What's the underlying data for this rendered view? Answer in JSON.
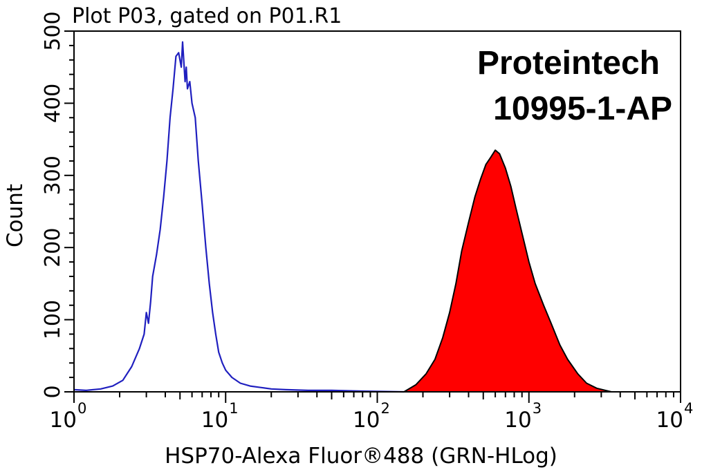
{
  "chart_data": {
    "type": "area",
    "title": "Plot P03, gated on P01.R1",
    "xlabel": "HSP70-Alexa Fluor®488 (GRN-HLog)",
    "ylabel": "Count",
    "xscale": "log",
    "xlim": [
      1,
      10000
    ],
    "ylim": [
      0,
      500
    ],
    "x_tick_labels": [
      {
        "base": "10",
        "exp": "0",
        "value": 1
      },
      {
        "base": "10",
        "exp": "1",
        "value": 10
      },
      {
        "base": "10",
        "exp": "2",
        "value": 100
      },
      {
        "base": "10",
        "exp": "3",
        "value": 1000
      },
      {
        "base": "10",
        "exp": "4",
        "value": 10000
      }
    ],
    "y_ticks": [
      0,
      100,
      200,
      300,
      400,
      500
    ],
    "annotation": [
      "Proteintech",
      "10995-1-AP"
    ],
    "series": [
      {
        "style": "outline",
        "color": "#1f1fbf",
        "x": [
          1.0,
          1.2,
          1.5,
          1.8,
          2.1,
          2.4,
          2.7,
          2.9,
          3.0,
          3.1,
          3.2,
          3.3,
          3.5,
          3.7,
          3.9,
          4.1,
          4.3,
          4.5,
          4.7,
          4.9,
          5.1,
          5.2,
          5.4,
          5.5,
          5.6,
          5.8,
          6.0,
          6.3,
          6.6,
          7.0,
          7.4,
          7.8,
          8.2,
          8.6,
          9.0,
          9.5,
          10.0,
          11.0,
          12.5,
          14.5,
          17.0,
          20.0,
          25.0,
          35.0,
          50.0,
          80.0,
          150.0
        ],
        "y": [
          3,
          2,
          4,
          8,
          16,
          35,
          60,
          80,
          110,
          95,
          125,
          160,
          190,
          225,
          270,
          320,
          380,
          420,
          465,
          470,
          450,
          485,
          430,
          450,
          420,
          430,
          400,
          380,
          320,
          260,
          200,
          150,
          110,
          80,
          55,
          40,
          30,
          20,
          12,
          8,
          6,
          4,
          3,
          2,
          2,
          1,
          0
        ]
      },
      {
        "style": "filled",
        "color": "#ff0000",
        "edge_color": "#000000",
        "x": [
          150,
          180,
          210,
          240,
          270,
          300,
          330,
          360,
          400,
          440,
          480,
          520,
          560,
          600,
          640,
          700,
          760,
          820,
          900,
          1000,
          1100,
          1250,
          1400,
          1600,
          1800,
          2100,
          2400,
          2800,
          3500
        ],
        "y": [
          0,
          10,
          25,
          45,
          75,
          110,
          150,
          195,
          235,
          270,
          295,
          315,
          325,
          335,
          330,
          310,
          285,
          255,
          220,
          180,
          150,
          120,
          95,
          65,
          45,
          25,
          12,
          5,
          0
        ]
      }
    ]
  }
}
